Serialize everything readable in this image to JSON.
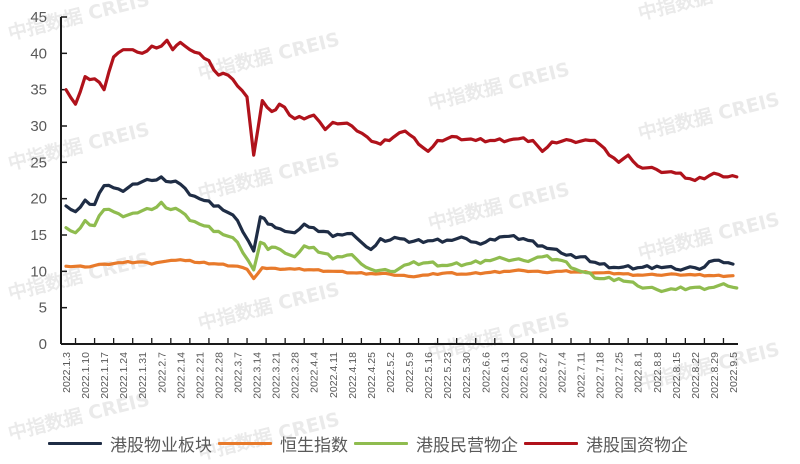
{
  "chart_data": {
    "type": "line",
    "title": "",
    "xlabel": "",
    "ylabel": "",
    "ylim": [
      0,
      45
    ],
    "yticks": [
      0,
      5,
      10,
      15,
      20,
      25,
      30,
      35,
      40,
      45
    ],
    "grid": false,
    "legend_position": "bottom",
    "categories": [
      "2022.1.3",
      "2022.1.10",
      "2022.1.17",
      "2022.1.24",
      "2022.1.31",
      "2022.2.7",
      "2022.2.14",
      "2022.2.21",
      "2022.2.28",
      "2022.3.7",
      "2022.3.14",
      "2022.3.21",
      "2022.3.28",
      "2022.4.4",
      "2022.4.11",
      "2022.4.18",
      "2022.4.25",
      "2022.5.2",
      "2022.5.9",
      "2022.5.16",
      "2022.5.23",
      "2022.5.30",
      "2022.6.6",
      "2022.6.13",
      "2022.6.20",
      "2022.6.27",
      "2022.7.4",
      "2022.7.11",
      "2022.7.18",
      "2022.7.25",
      "2022.8.1",
      "2022.8.8",
      "2022.8.15",
      "2022.8.22",
      "2022.8.29",
      "2022.9.5"
    ],
    "series": [
      {
        "name": "港股物业板块",
        "color": "#1f2d45",
        "values": [
          19.0,
          18.2,
          19.8,
          19.2,
          21.8,
          21.5,
          21.0,
          22.0,
          22.5,
          23.0,
          22.3,
          22.0,
          20.5,
          20.0,
          19.0,
          17.0,
          12.8,
          17.5,
          16.5,
          16.0,
          15.5,
          15.3,
          16.5,
          16.0,
          15.5,
          14.8,
          15.0,
          15.2,
          14.0,
          13.0,
          14.5,
          14.3,
          14.5,
          14.0,
          14.2,
          14.3,
          14.5,
          14.0,
          14.0,
          14.3,
          14.8,
          14.5,
          13.5,
          12.5,
          12.3,
          12.0,
          11.0,
          10.5,
          10.5,
          10.7,
          10.3,
          10.5,
          10.6,
          11.5,
          11.2,
          11.0
        ],
        "x_index": [
          0,
          0.5,
          1,
          1.5,
          2,
          2.5,
          3,
          3.5,
          4.5,
          5,
          5.5,
          6,
          6.5,
          7,
          8,
          9,
          9.85,
          10.2,
          10.6,
          11,
          11.5,
          12,
          12.5,
          13,
          13.5,
          14,
          14.5,
          15,
          15.5,
          16,
          16.5,
          17,
          17.5,
          18,
          19,
          20,
          21,
          21.5,
          22,
          22.5,
          23,
          24,
          25,
          26,
          26.5,
          27,
          28,
          29,
          30,
          31,
          32,
          33,
          33.5,
          34,
          34.5,
          35
        ]
      },
      {
        "name": "恒生指数",
        "color": "#e87a2b",
        "values": [
          10.7,
          10.6,
          11.0,
          11.2,
          11.3,
          11.0,
          11.3,
          11.5,
          11.6,
          11.5,
          11.2,
          11.0,
          10.7,
          10.3,
          9.0,
          10.5,
          10.4,
          10.3,
          10.2,
          10.0,
          9.8,
          9.7,
          9.6,
          9.3,
          9.5,
          9.8,
          9.6,
          9.8,
          10.0,
          10.1,
          9.9,
          10.0,
          9.9,
          9.8,
          9.7,
          9.5,
          9.5,
          9.6,
          9.5,
          9.4,
          9.4
        ],
        "x_index": [
          0,
          1,
          2,
          3,
          4,
          4.5,
          5,
          5.5,
          6,
          6.5,
          7,
          8,
          9,
          9.5,
          9.85,
          10.3,
          11,
          12,
          13,
          14,
          15,
          16,
          17,
          18,
          19,
          20,
          21,
          22,
          23,
          24,
          25,
          26,
          27,
          28,
          29,
          30,
          31,
          32,
          33,
          34,
          35
        ]
      },
      {
        "name": "港股民营物企",
        "color": "#8fbc4f",
        "values": [
          16.0,
          15.3,
          17.0,
          16.3,
          18.5,
          18.2,
          17.5,
          18.0,
          18.5,
          19.5,
          18.5,
          18.3,
          17.0,
          16.5,
          15.5,
          14.0,
          10.2,
          14.0,
          13.0,
          13.3,
          12.5,
          12.0,
          13.5,
          13.3,
          12.5,
          11.7,
          12.0,
          12.3,
          11.0,
          10.3,
          10.0,
          11.0,
          11.2,
          10.8,
          11.0,
          11.5,
          11.7,
          11.5,
          12.0,
          11.5,
          10.0,
          9.0,
          9.0,
          8.0,
          7.5,
          7.5,
          7.8,
          7.5,
          7.8,
          8.3,
          7.8,
          7.7
        ],
        "x_index": [
          0,
          0.5,
          1,
          1.5,
          2,
          2.5,
          3,
          3.5,
          4.5,
          5,
          5.5,
          6,
          6.5,
          7,
          8,
          9,
          9.85,
          10.2,
          10.6,
          11,
          11.5,
          12,
          12.5,
          13,
          13.5,
          14,
          14.5,
          15,
          15.5,
          16,
          17,
          18,
          19,
          20,
          21,
          22,
          23,
          24,
          25,
          26,
          27,
          28,
          29,
          30,
          31,
          32,
          33,
          33.5,
          34,
          34.5,
          35,
          35.2
        ]
      },
      {
        "name": "港股国资物企",
        "color": "#b0121b",
        "values": [
          35.0,
          33.0,
          36.8,
          36.5,
          35.0,
          39.5,
          40.5,
          40.5,
          40.0,
          41.0,
          41.0,
          41.8,
          40.5,
          41.5,
          40.5,
          40.0,
          39.0,
          37.0,
          37.0,
          35.5,
          34.0,
          26.0,
          33.5,
          32.0,
          33.0,
          31.0,
          31.5,
          29.5,
          30.5,
          30.0,
          28.5,
          27.5,
          28.5,
          29.3,
          27.5,
          26.5,
          28.0,
          28.5,
          28.0,
          28.0,
          28.2,
          28.0,
          26.5,
          27.8,
          28.0,
          28.0,
          27.5,
          26.0,
          25.0,
          26.0,
          24.5,
          24.0,
          23.5,
          22.5,
          23.5,
          23.0,
          23.0
        ],
        "x_index": [
          0,
          0.5,
          1,
          1.5,
          2,
          2.5,
          3,
          3.5,
          4,
          4.5,
          5,
          5.3,
          5.6,
          6,
          6.5,
          7,
          7.5,
          8,
          8.5,
          9,
          9.5,
          9.85,
          10.3,
          10.8,
          11.2,
          12,
          13,
          13.6,
          14,
          15,
          15.8,
          16.5,
          17.2,
          17.8,
          18.5,
          19,
          19.5,
          20.5,
          21.5,
          22.5,
          23.5,
          24.5,
          25,
          25.5,
          26.5,
          27.5,
          28,
          28.5,
          29,
          29.5,
          30,
          31,
          32,
          33,
          34,
          34.5,
          35.2
        ]
      }
    ],
    "watermark": "中指数据 CREIS"
  },
  "legend": {
    "items": [
      {
        "label": "港股物业板块",
        "color": "#1f2d45"
      },
      {
        "label": "恒生指数",
        "color": "#e87a2b"
      },
      {
        "label": "港股民营物企",
        "color": "#8fbc4f"
      },
      {
        "label": "港股国资物企",
        "color": "#b0121b"
      }
    ]
  }
}
